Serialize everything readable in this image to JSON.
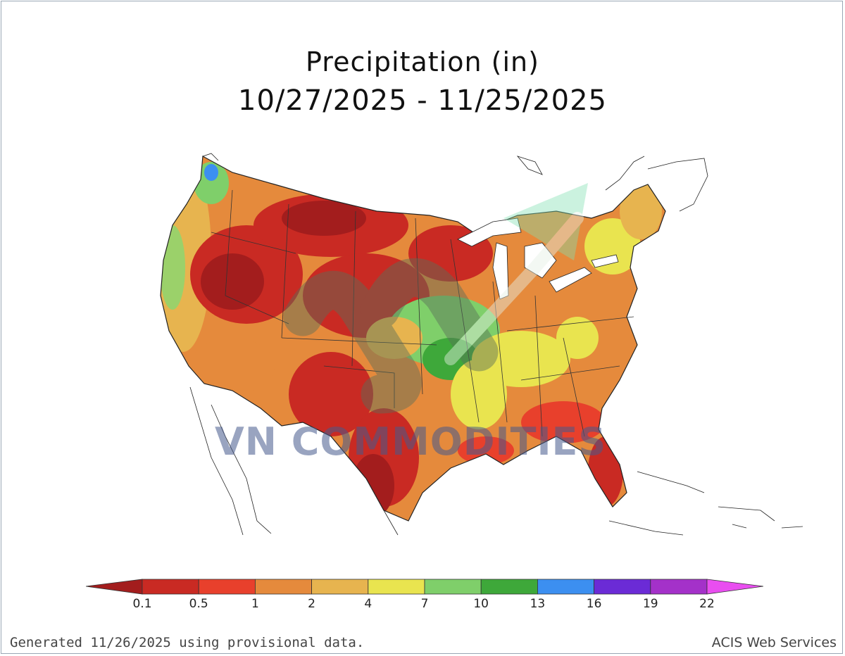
{
  "title": {
    "line1": "Precipitation (in)",
    "line2": "10/27/2025 - 11/25/2025"
  },
  "legend": {
    "bins": [
      {
        "color": "#a31d1d"
      },
      {
        "color": "#c92a23"
      },
      {
        "color": "#e8402c"
      },
      {
        "color": "#e58a3c"
      },
      {
        "color": "#e7b44f"
      },
      {
        "color": "#e9e44f"
      },
      {
        "color": "#7fcf6a"
      },
      {
        "color": "#3ea83a"
      },
      {
        "color": "#3c8ff0"
      },
      {
        "color": "#6b2bd6"
      },
      {
        "color": "#a431c9"
      },
      {
        "color": "#e94ef0"
      }
    ],
    "ticks": [
      "0.1",
      "0.5",
      "1",
      "2",
      "4",
      "7",
      "10",
      "13",
      "16",
      "19",
      "22"
    ]
  },
  "watermark": "VN COMMODITIES",
  "footer": {
    "left": "Generated 11/26/2025 using provisional data.",
    "right": "ACIS Web Services"
  }
}
